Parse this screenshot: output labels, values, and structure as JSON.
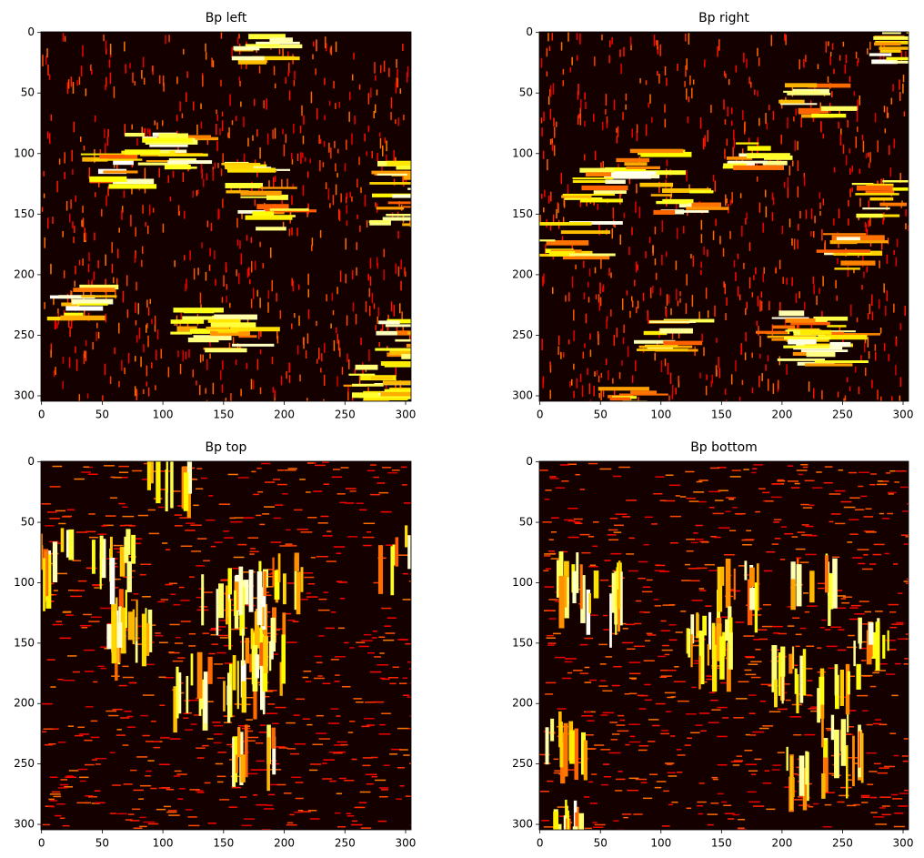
{
  "chart_data": [
    {
      "type": "heatmap",
      "title": "Bp left",
      "colormap": "hot",
      "stroke": "vertical",
      "xlim": [
        -0.5,
        304.5
      ],
      "ylim": [
        304.5,
        -0.5
      ],
      "xticks": [
        0,
        50,
        100,
        150,
        200,
        250,
        300
      ],
      "yticks": [
        0,
        50,
        100,
        150,
        200,
        250,
        300
      ]
    },
    {
      "type": "heatmap",
      "title": "Bp right",
      "colormap": "hot",
      "stroke": "vertical",
      "xlim": [
        -0.5,
        304.5
      ],
      "ylim": [
        304.5,
        -0.5
      ],
      "xticks": [
        0,
        50,
        100,
        150,
        200,
        250,
        300
      ],
      "yticks": [
        0,
        50,
        100,
        150,
        200,
        250,
        300
      ]
    },
    {
      "type": "heatmap",
      "title": "Bp top",
      "colormap": "hot",
      "stroke": "horizontal",
      "xlim": [
        -0.5,
        304.5
      ],
      "ylim": [
        304.5,
        -0.5
      ],
      "xticks": [
        0,
        50,
        100,
        150,
        200,
        250,
        300
      ],
      "yticks": [
        0,
        50,
        100,
        150,
        200,
        250,
        300
      ]
    },
    {
      "type": "heatmap",
      "title": "Bp bottom",
      "colormap": "hot",
      "stroke": "horizontal",
      "xlim": [
        -0.5,
        304.5
      ],
      "ylim": [
        304.5,
        -0.5
      ],
      "xticks": [
        0,
        50,
        100,
        150,
        200,
        250,
        300
      ],
      "yticks": [
        0,
        50,
        100,
        150,
        200,
        250,
        300
      ]
    }
  ]
}
